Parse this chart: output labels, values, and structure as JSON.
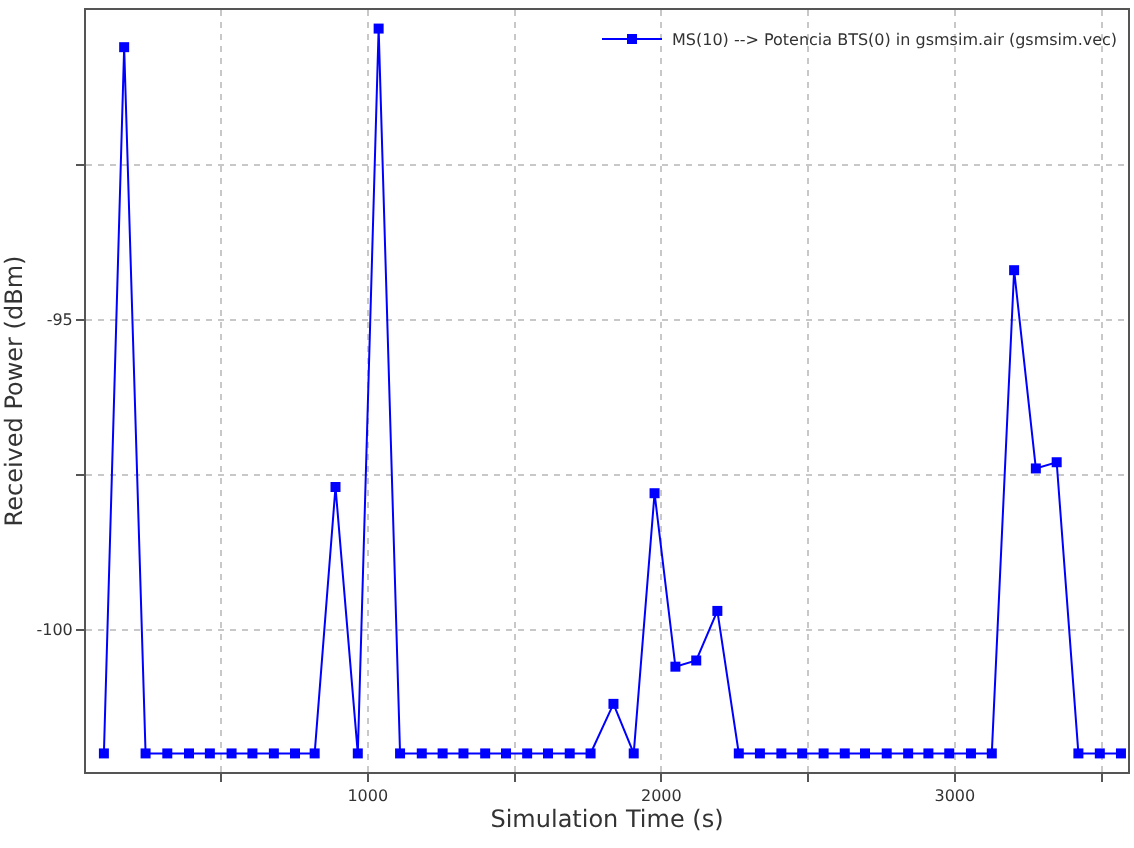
{
  "chart_data": {
    "type": "line",
    "xlabel": "Simulation Time (s)",
    "ylabel": "Received Power (dBm)",
    "x": [
      101,
      170,
      243,
      317,
      391,
      462,
      536,
      607,
      680,
      752,
      819,
      890,
      966,
      1037,
      1110,
      1184,
      1255,
      1326,
      1400,
      1471,
      1543,
      1614,
      1688,
      1759,
      1837,
      1906,
      1977,
      2048,
      2119,
      2191,
      2264,
      2336,
      2409,
      2480,
      2553,
      2625,
      2694,
      2768,
      2841,
      2910,
      2981,
      3055,
      3126,
      3202,
      3276,
      3347,
      3421,
      3494,
      3566
    ],
    "series": [
      {
        "name": "MS(10) --> Potencia BTS(0) in gsmsim.air (gsmsim.vec)",
        "color": "#0000ff",
        "values": [
          -102,
          -90.6,
          -102,
          -102,
          -102,
          -102,
          -102,
          -102,
          -102,
          -102,
          -102,
          -97.7,
          -102,
          -90.3,
          -102,
          -102,
          -102,
          -102,
          -102,
          -102,
          -102,
          -102,
          -102,
          -102,
          -101.2,
          -102,
          -97.8,
          -100.6,
          -100.5,
          -99.7,
          -102,
          -102,
          -102,
          -102,
          -102,
          -102,
          -102,
          -102,
          -102,
          -102,
          -102,
          -102,
          -102,
          -94.2,
          -97.4,
          -97.3,
          -102,
          -102,
          -102
        ]
      }
    ],
    "xlim": [
      40,
      3590
    ],
    "ylim": [
      -102.3,
      -90
    ],
    "xticks": [
      {
        "value": 500,
        "label": null
      },
      1000,
      {
        "value": 1500,
        "label": null
      },
      2000,
      {
        "value": 2500,
        "label": null
      },
      3000,
      {
        "value": 3500,
        "label": null
      }
    ],
    "yticks": [
      {
        "value": -92.5,
        "label": null
      },
      -95,
      {
        "value": -97.5,
        "label": null
      },
      -100
    ],
    "grid": true,
    "legend": "top right",
    "marker": "square",
    "line_style": "solid"
  }
}
